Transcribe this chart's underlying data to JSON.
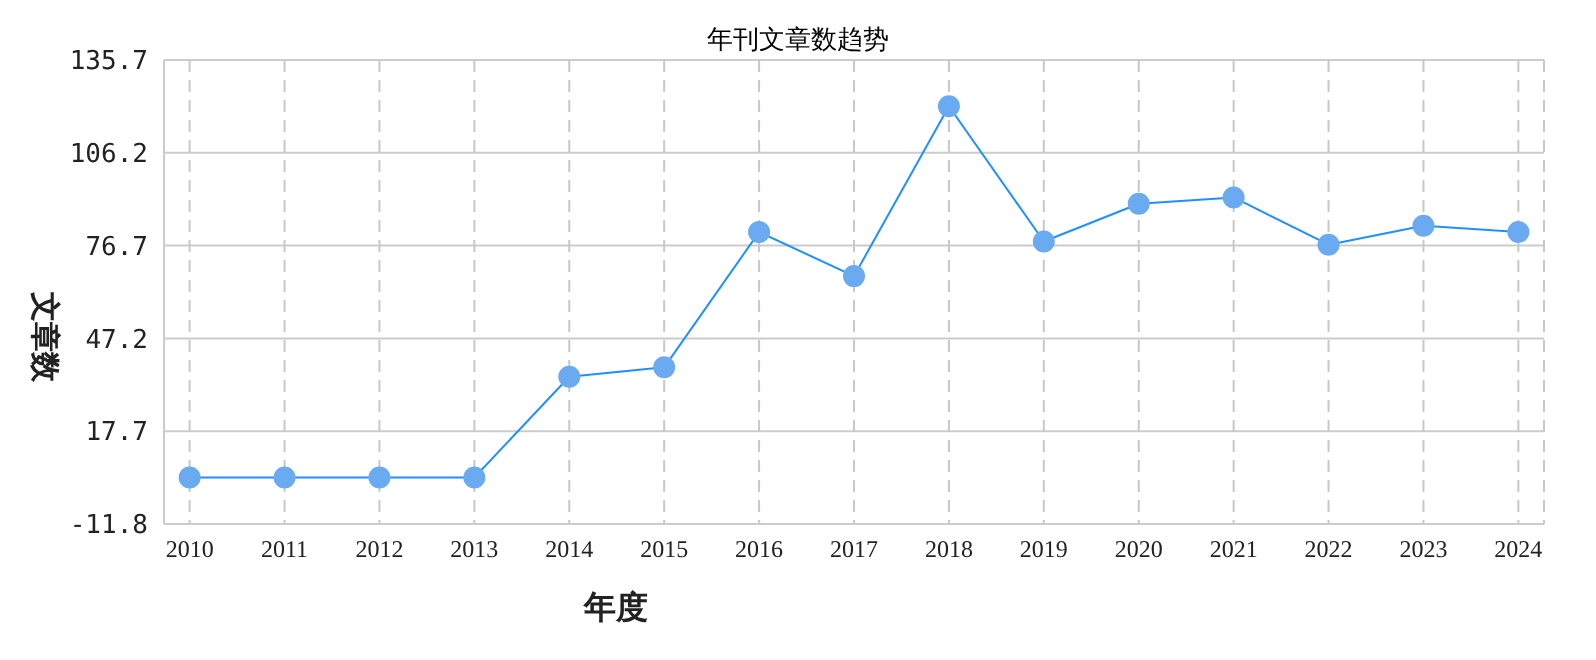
{
  "chart_data": {
    "type": "line",
    "title": "年刊文章数趋势",
    "xlabel": "年度",
    "ylabel": "文章数",
    "categories": [
      "2010",
      "2011",
      "2012",
      "2013",
      "2014",
      "2015",
      "2016",
      "2017",
      "2018",
      "2019",
      "2020",
      "2021",
      "2022",
      "2023",
      "2024"
    ],
    "series": [
      {
        "color": "#1e90ff",
        "values": [
          3,
          3,
          3,
          3,
          35,
          38,
          81,
          67,
          121,
          78,
          90,
          92,
          77,
          83,
          81
        ]
      }
    ],
    "ylim": [
      -11.8,
      135.7
    ],
    "yticks": [
      -11.8,
      17.7,
      47.2,
      76.7,
      106.2,
      135.7
    ],
    "grid": true,
    "marker": "circle",
    "line_style": "solid"
  }
}
